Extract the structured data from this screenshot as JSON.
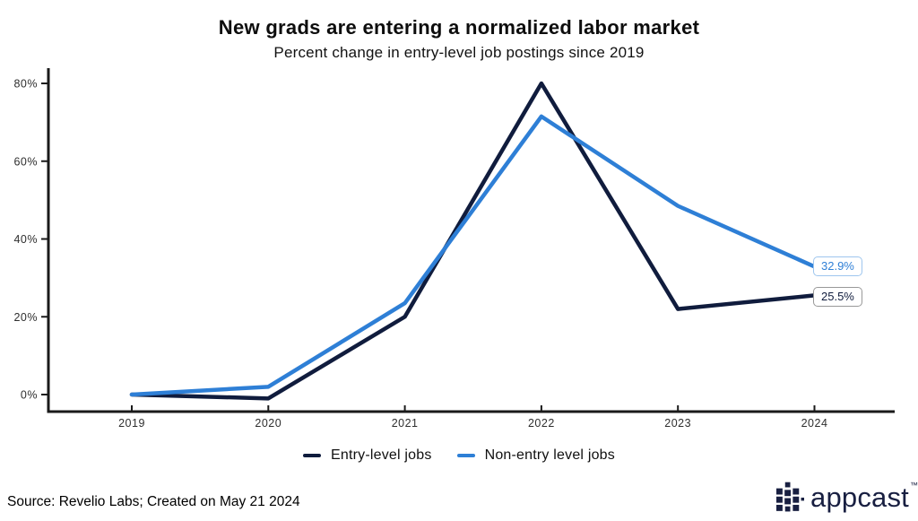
{
  "header": {
    "title": "New grads are entering a normalized labor market",
    "subtitle": "Percent change in entry-level job postings since 2019"
  },
  "chart_data": {
    "type": "line",
    "x": [
      2019,
      2020,
      2021,
      2022,
      2023,
      2024
    ],
    "xtick_labels": [
      "2019",
      "2020",
      "2021",
      "2022",
      "2023",
      "2024"
    ],
    "yticks": [
      "0%",
      "20%",
      "40%",
      "60%",
      "80%"
    ],
    "ytick_values": [
      0,
      20,
      40,
      60,
      80
    ],
    "ylim": [
      -4,
      84
    ],
    "grid": false,
    "legend_position": "bottom",
    "series": [
      {
        "name": "Entry-level jobs",
        "color": "#101c3d",
        "values": [
          0,
          -1,
          20,
          80,
          22,
          25.5
        ],
        "end_label": "25.5%"
      },
      {
        "name": "Non-entry level jobs",
        "color": "#2e7fd6",
        "values": [
          0,
          2,
          23.5,
          71.5,
          48.5,
          32.9
        ],
        "end_label": "32.9%"
      }
    ]
  },
  "annotations": {
    "non_entry_end_label": "32.9%",
    "entry_end_label": "25.5%"
  },
  "legend": {
    "items": [
      {
        "label": "Entry-level jobs",
        "color": "#101c3d"
      },
      {
        "label": "Non-entry level jobs",
        "color": "#2e7fd6"
      }
    ]
  },
  "footer": {
    "source": "Source: Revelio Labs; Created on May 21 2024",
    "brand": "appcast",
    "brand_tm": "™",
    "brand_color": "#181f41"
  }
}
